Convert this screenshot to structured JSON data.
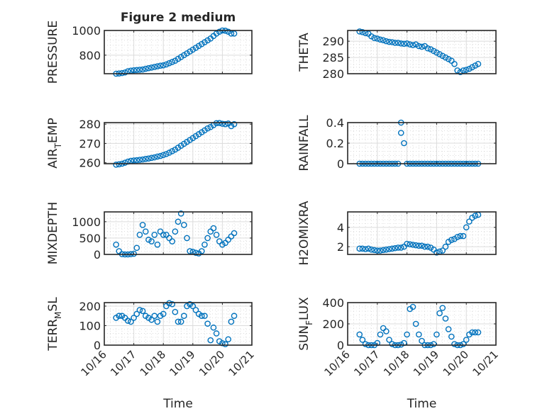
{
  "title": "Figure 2 medium",
  "colors": {
    "marker": "#0072BD",
    "axis": "#262626",
    "grid": "#dcdcdc"
  },
  "chart_data": {
    "type": "scatter",
    "title": "Figure 2 medium",
    "xlabel": "Time",
    "x_origin_label": "10/16",
    "xlim_days": [
      0,
      5
    ],
    "xtick_days": [
      0,
      1,
      2,
      3,
      4,
      5
    ],
    "xtick_labels": [
      "10/16",
      "10/17",
      "10/18",
      "10/19",
      "10/20",
      "10/21"
    ],
    "grid": true,
    "x_days": [
      0.4,
      0.5,
      0.6,
      0.7,
      0.8,
      0.9,
      1.0,
      1.1,
      1.2,
      1.3,
      1.4,
      1.5,
      1.6,
      1.7,
      1.8,
      1.9,
      2.0,
      2.1,
      2.2,
      2.3,
      2.4,
      2.5,
      2.6,
      2.7,
      2.8,
      2.9,
      3.0,
      3.1,
      3.2,
      3.3,
      3.4,
      3.5,
      3.6,
      3.7,
      3.8,
      3.9,
      4.0,
      4.1,
      4.2,
      4.3,
      4.4
    ],
    "panels": [
      {
        "ylabel": "PRESSURE",
        "ylim": [
          650,
          1000
        ],
        "yticks": [
          800,
          1000
        ],
        "values": [
          650,
          652,
          655,
          660,
          670,
          675,
          678,
          680,
          682,
          684,
          690,
          695,
          700,
          705,
          710,
          715,
          718,
          725,
          735,
          745,
          755,
          770,
          785,
          800,
          815,
          830,
          845,
          860,
          875,
          890,
          905,
          920,
          935,
          955,
          975,
          990,
          1000,
          998,
          990,
          975,
          975
        ]
      },
      {
        "ylabel": "THETA",
        "ylim": [
          280,
          293.3
        ],
        "yticks": [
          280,
          285,
          290
        ],
        "values": [
          293,
          292.8,
          292.5,
          292.3,
          291.5,
          291,
          290.8,
          290.5,
          290.3,
          290,
          289.8,
          289.7,
          289.5,
          289.5,
          289.3,
          289.2,
          289.3,
          289,
          288.8,
          289,
          288.5,
          288.3,
          288.5,
          287.8,
          287.5,
          287,
          286.5,
          286,
          285.5,
          285,
          284.5,
          284,
          283,
          281,
          280.5,
          281,
          281.2,
          281.5,
          282,
          282.5,
          283
        ]
      },
      {
        "ylabel": "AIR_TEMP",
        "ylim": [
          259.5,
          280.8
        ],
        "yticks": [
          260,
          270,
          280
        ],
        "values": [
          259,
          259.2,
          259.5,
          260,
          260.6,
          261,
          261.2,
          261.3,
          261.5,
          261.7,
          262,
          262.2,
          262.5,
          262.8,
          263.2,
          263.5,
          264,
          264.5,
          265.2,
          266,
          266.8,
          267.8,
          268.8,
          269.8,
          270.8,
          271.8,
          272.8,
          273.8,
          274.8,
          275.8,
          276.8,
          277.8,
          278.5,
          279.5,
          280.5,
          280.6,
          280.2,
          280,
          280.3,
          279,
          280
        ]
      },
      {
        "ylabel": "RAINFALL",
        "ylim": [
          0,
          0.4
        ],
        "yticks": [
          0,
          0.2,
          0.4
        ],
        "values": [
          0,
          0,
          0,
          0,
          0,
          0,
          0,
          0,
          0,
          0,
          0,
          0,
          0,
          0,
          0.4,
          0.2,
          0,
          0,
          0,
          0,
          0,
          0,
          0,
          0,
          0,
          0,
          0,
          0,
          0,
          0,
          0,
          0,
          0,
          0,
          0,
          0,
          0,
          0,
          0,
          0,
          0
        ],
        "extra_points": [
          [
            1.8,
            0.3
          ]
        ]
      },
      {
        "ylabel": "MIXDEPTH",
        "ylim": [
          0,
          1300
        ],
        "yticks": [
          0,
          500,
          1000
        ],
        "values": [
          300,
          100,
          10,
          0,
          0,
          10,
          20,
          200,
          600,
          900,
          700,
          450,
          400,
          600,
          300,
          700,
          600,
          600,
          500,
          400,
          700,
          1000,
          1250,
          900,
          500,
          100,
          80,
          50,
          30,
          100,
          300,
          500,
          700,
          800,
          600,
          400,
          300,
          350,
          450,
          550,
          650
        ]
      },
      {
        "ylabel": "H2OMIXRA",
        "ylim": [
          1.2,
          5.6
        ],
        "yticks": [
          2,
          4
        ],
        "values": [
          1.8,
          1.8,
          1.75,
          1.8,
          1.7,
          1.65,
          1.6,
          1.6,
          1.65,
          1.7,
          1.75,
          1.8,
          1.85,
          1.9,
          1.9,
          2.0,
          2.3,
          2.25,
          2.2,
          2.15,
          2.1,
          2.1,
          2.0,
          2.0,
          1.9,
          1.7,
          1.4,
          1.5,
          1.6,
          2.0,
          2.5,
          2.7,
          2.8,
          3.0,
          3.1,
          3.1,
          4.0,
          4.6,
          5.0,
          5.2,
          5.3
        ]
      },
      {
        "ylabel": "TERR_MSL",
        "ylim": [
          0,
          218
        ],
        "yticks": [
          0,
          100,
          200
        ],
        "values": [
          140,
          150,
          150,
          140,
          125,
          120,
          140,
          160,
          180,
          175,
          150,
          140,
          130,
          150,
          120,
          150,
          160,
          200,
          215,
          210,
          170,
          120,
          120,
          150,
          200,
          210,
          200,
          180,
          160,
          150,
          150,
          110,
          25,
          90,
          60,
          20,
          10,
          5,
          30,
          120,
          150
        ]
      },
      {
        "ylabel": "SUN_FLUX",
        "ylim": [
          0,
          400
        ],
        "yticks": [
          0,
          200,
          400
        ],
        "values": [
          100,
          50,
          10,
          0,
          0,
          0,
          20,
          100,
          160,
          130,
          50,
          10,
          0,
          0,
          5,
          20,
          100,
          340,
          360,
          200,
          100,
          40,
          0,
          0,
          0,
          10,
          100,
          300,
          350,
          250,
          150,
          80,
          10,
          0,
          0,
          10,
          50,
          100,
          120,
          120,
          120
        ]
      }
    ]
  }
}
